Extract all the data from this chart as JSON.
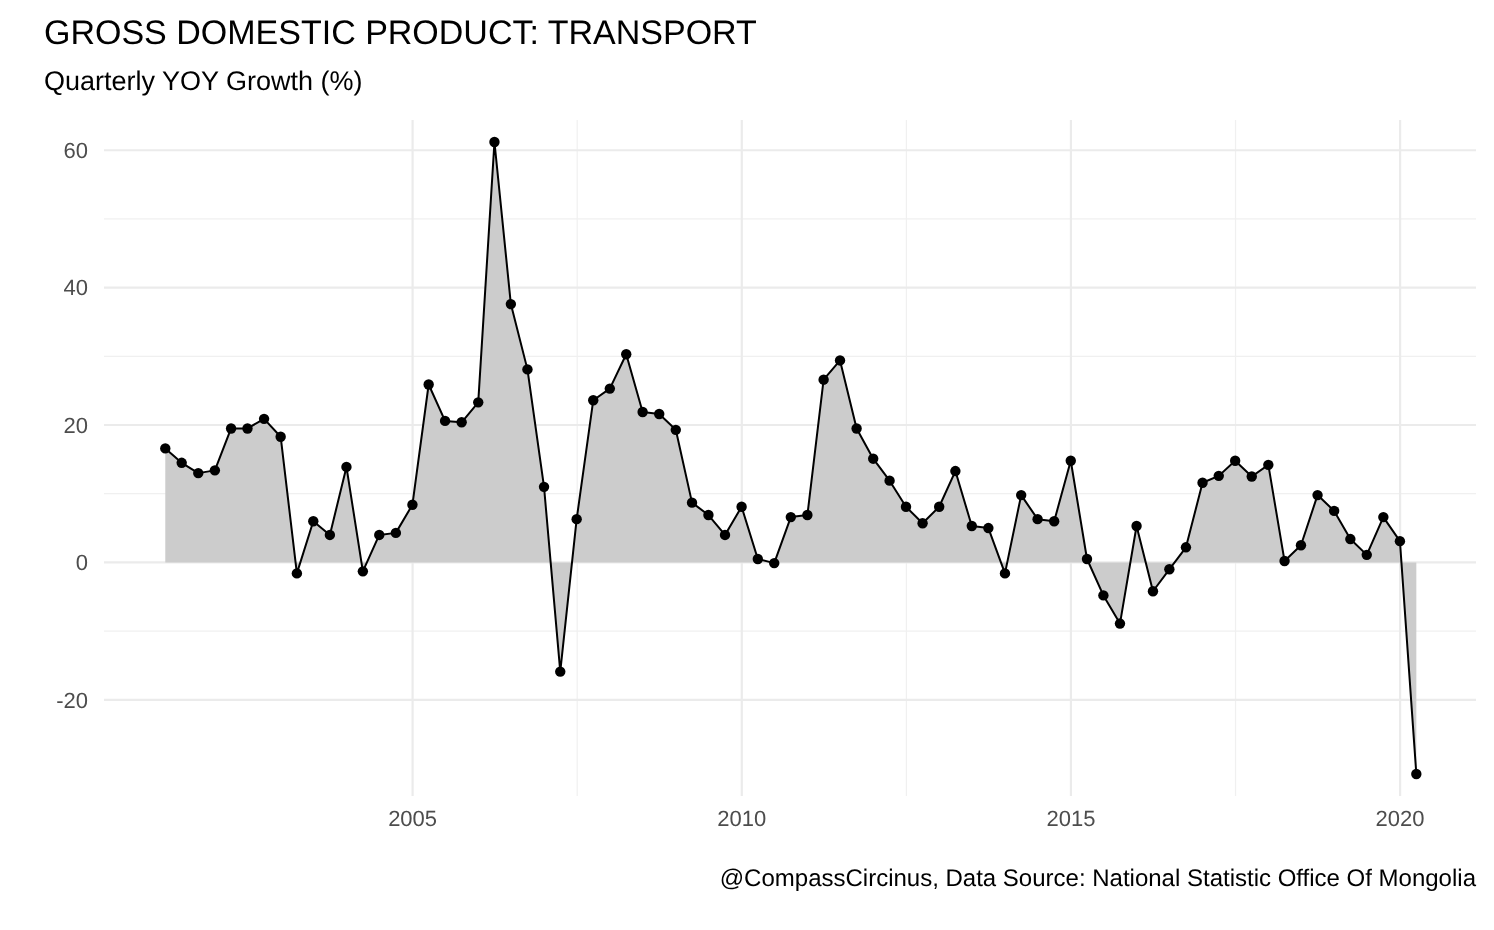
{
  "chart_data": {
    "type": "area",
    "title": "GROSS DOMESTIC PRODUCT: TRANSPORT",
    "subtitle": "Quarterly YOY Growth (%)",
    "annotations": [
      "@CompassCircinus, Data Source: National Statistic Office Of Mongolia"
    ],
    "x": [
      "2001-03-31",
      "2001-06-30",
      "2001-09-30",
      "2001-12-31",
      "2002-03-31",
      "2002-06-30",
      "2002-09-30",
      "2002-12-31",
      "2003-03-31",
      "2003-06-30",
      "2003-09-30",
      "2003-12-31",
      "2004-03-31",
      "2004-06-30",
      "2004-09-30",
      "2004-12-31",
      "2005-03-31",
      "2005-06-30",
      "2005-09-30",
      "2005-12-31",
      "2006-03-31",
      "2006-06-30",
      "2006-09-30",
      "2006-12-31",
      "2007-03-31",
      "2007-06-30",
      "2007-09-30",
      "2007-12-31",
      "2008-03-31",
      "2008-06-30",
      "2008-09-30",
      "2008-12-31",
      "2009-03-31",
      "2009-06-30",
      "2009-09-30",
      "2009-12-31",
      "2010-03-31",
      "2010-06-30",
      "2010-09-30",
      "2010-12-31",
      "2011-03-31",
      "2011-06-30",
      "2011-09-30",
      "2011-12-31",
      "2012-03-31",
      "2012-06-30",
      "2012-09-30",
      "2012-12-31",
      "2013-03-31",
      "2013-06-30",
      "2013-09-30",
      "2013-12-31",
      "2014-03-31",
      "2014-06-30",
      "2014-09-30",
      "2014-12-31",
      "2015-03-31",
      "2015-06-30",
      "2015-09-30",
      "2015-12-31",
      "2016-03-31",
      "2016-06-30",
      "2016-09-30",
      "2016-12-31",
      "2017-03-31",
      "2017-06-30",
      "2017-09-30",
      "2017-12-31",
      "2018-03-31",
      "2018-06-30",
      "2018-09-30",
      "2018-12-31",
      "2019-03-31",
      "2019-06-30",
      "2019-09-30",
      "2019-12-31",
      "2020-03-31"
    ],
    "series": [
      {
        "color": "#cccccc",
        "values": [
          16.6,
          14.5,
          13.0,
          13.4,
          19.5,
          19.5,
          20.9,
          18.3,
          -1.6,
          6.0,
          4.0,
          13.9,
          -1.3,
          4.0,
          4.3,
          8.4,
          25.9,
          20.6,
          20.4,
          23.3,
          61.2,
          37.6,
          28.1,
          11.0,
          -15.9,
          6.3,
          23.6,
          25.3,
          30.3,
          21.9,
          21.6,
          19.3,
          8.7,
          6.9,
          4.0,
          8.1,
          0.5,
          -0.1,
          6.6,
          6.9,
          26.6,
          29.4,
          19.5,
          15.1,
          11.9,
          8.1,
          5.7,
          8.1,
          13.3,
          5.3,
          5.0,
          -1.6,
          9.8,
          6.3,
          6.0,
          14.8,
          0.5,
          -4.8,
          -8.9,
          5.3,
          -4.2,
          -1.0,
          2.2,
          11.6,
          12.6,
          14.8,
          12.5,
          14.2,
          0.2,
          2.5,
          9.8,
          7.5,
          3.4,
          1.1,
          6.6,
          3.1,
          -30.8
        ]
      }
    ],
    "marker": "circle",
    "grid": true,
    "xlim": [
      "2000-04-25",
      "2021-02-25"
    ],
    "xticks": [
      {
        "value": "2005-01-01",
        "label": "2005"
      },
      {
        "value": "2010-01-01",
        "label": "2010"
      },
      {
        "value": "2015-01-01",
        "label": "2015"
      },
      {
        "value": "2020-01-01",
        "label": "2020"
      }
    ],
    "ylim": [
      -34,
      64.4
    ],
    "yticks": [
      -20,
      0,
      20,
      40,
      60
    ]
  }
}
